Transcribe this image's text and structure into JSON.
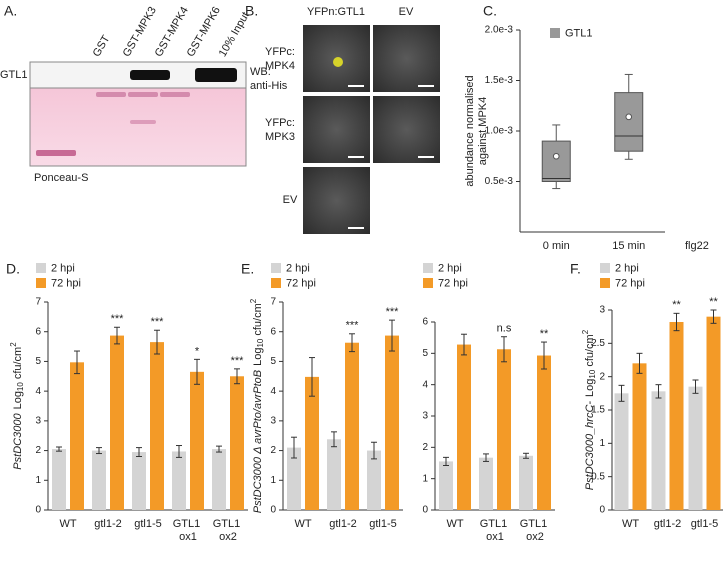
{
  "panel_a": {
    "label": "A.",
    "lanes": [
      "GST",
      "GST-MPK3",
      "GST-MPK4",
      "GST-MPK6",
      "10% Input"
    ],
    "row_label": "GTL1",
    "blot_label": [
      "WB:",
      "anti-His"
    ],
    "stain_label": "Ponceau-S"
  },
  "panel_b": {
    "label": "B.",
    "columns": [
      "YFPn:GTL1",
      "EV"
    ],
    "rows": [
      [
        "YFPc:",
        "MPK4"
      ],
      [
        "YFPc:",
        "MPK3"
      ],
      [
        "EV"
      ]
    ]
  },
  "chart_data": [
    {
      "type": "box",
      "label": "C.",
      "ylabel": [
        "abundance normalised",
        "against MPK4"
      ],
      "xlabel": "flg22",
      "categories": [
        "0 min",
        "15 min"
      ],
      "series": [
        {
          "name": "GTL1",
          "color": "#999999",
          "min": [
            0.00043,
            0.00072
          ],
          "q1": [
            0.0005,
            0.0008
          ],
          "median": [
            0.00053,
            0.00095
          ],
          "q3": [
            0.0009,
            0.00138
          ],
          "max": [
            0.00106,
            0.00156
          ],
          "mean": [
            0.00075,
            0.00114
          ]
        }
      ],
      "ylim": [
        0,
        0.002
      ],
      "yticks": [
        {
          "value": 0.0005,
          "label": "0.5e-3"
        },
        {
          "value": 0.001,
          "label": "1.0e-3"
        },
        {
          "value": 0.0015,
          "label": "1.5e-3"
        },
        {
          "value": 0.002,
          "label": "2.0e-3"
        }
      ],
      "legend": "top-left"
    },
    {
      "type": "bar",
      "label": "D.",
      "ylabel": [
        "PstDC3000",
        "Log",
        "10",
        "cfu/cm",
        "2"
      ],
      "categories": [
        "WT",
        "gtl1-2",
        "gtl1-5",
        "GTL1 ox1",
        "GTL1 ox2"
      ],
      "series": [
        {
          "name": "2 hpi",
          "color": "#d4d4d4",
          "values": [
            2.05,
            2.0,
            1.95,
            1.97,
            2.05
          ],
          "errors": [
            0.07,
            0.1,
            0.15,
            0.2,
            0.1
          ]
        },
        {
          "name": "72 hpi",
          "color": "#f39a27",
          "values": [
            4.97,
            5.87,
            5.65,
            4.65,
            4.5
          ],
          "errors": [
            0.38,
            0.28,
            0.4,
            0.42,
            0.25
          ]
        }
      ],
      "annotations": [
        null,
        "***",
        "***",
        "*",
        "***"
      ],
      "ylim": [
        0,
        7
      ],
      "yticks": [
        0,
        1,
        2,
        3,
        4,
        5,
        6,
        7
      ],
      "legend": "top-left"
    },
    {
      "type": "bar",
      "label": "E.",
      "ylabel": [
        "PstDC3000 Δ avrPto/avrPtoB",
        "Log",
        "10",
        "cfu/cm",
        "2"
      ],
      "categories": [
        "WT",
        "gtl1-2",
        "gtl1-5"
      ],
      "series": [
        {
          "name": "2 hpi",
          "color": "#d4d4d4",
          "values": [
            2.1,
            2.38,
            2.0
          ],
          "errors": [
            0.35,
            0.25,
            0.28
          ]
        },
        {
          "name": "72 hpi",
          "color": "#f39a27",
          "values": [
            4.48,
            5.63,
            5.87
          ],
          "errors": [
            0.65,
            0.3,
            0.52
          ]
        }
      ],
      "annotations": [
        null,
        "***",
        "***"
      ],
      "ylim": [
        0,
        7
      ],
      "yticks": [
        0,
        1,
        2,
        3,
        4,
        5,
        6,
        7
      ],
      "legend": "top-left"
    },
    {
      "type": "bar",
      "categories": [
        "WT",
        "GTL1 ox1",
        "GTL1 ox2"
      ],
      "series": [
        {
          "name": "2 hpi",
          "color": "#d4d4d4",
          "values": [
            1.55,
            1.67,
            1.73
          ],
          "errors": [
            0.13,
            0.12,
            0.08
          ]
        },
        {
          "name": "72 hpi",
          "color": "#f39a27",
          "values": [
            5.28,
            5.13,
            4.93
          ],
          "errors": [
            0.33,
            0.4,
            0.43
          ]
        }
      ],
      "annotations": [
        null,
        "n.s",
        "**"
      ],
      "ylim": [
        0,
        6
      ],
      "yticks": [
        0,
        1,
        2,
        3,
        4,
        5,
        6
      ],
      "legend": "top-left"
    },
    {
      "type": "bar",
      "label": "F.",
      "ylabel": [
        "PstDC3000_hrcC-",
        "Log",
        "10",
        "cfu/cm",
        "2"
      ],
      "categories": [
        "WT",
        "gtl1-2",
        "gtl1-5"
      ],
      "series": [
        {
          "name": "2 hpi",
          "color": "#d4d4d4",
          "values": [
            1.75,
            1.78,
            1.85
          ],
          "errors": [
            0.12,
            0.1,
            0.1
          ]
        },
        {
          "name": "72 hpi",
          "color": "#f39a27",
          "values": [
            2.2,
            2.82,
            2.9
          ],
          "errors": [
            0.15,
            0.13,
            0.1
          ]
        }
      ],
      "annotations": [
        null,
        "**",
        "**"
      ],
      "ylim": [
        0,
        3
      ],
      "yticks": [
        0,
        0.5,
        1,
        1.5,
        2,
        2.5,
        3
      ],
      "legend": "top-left"
    }
  ]
}
